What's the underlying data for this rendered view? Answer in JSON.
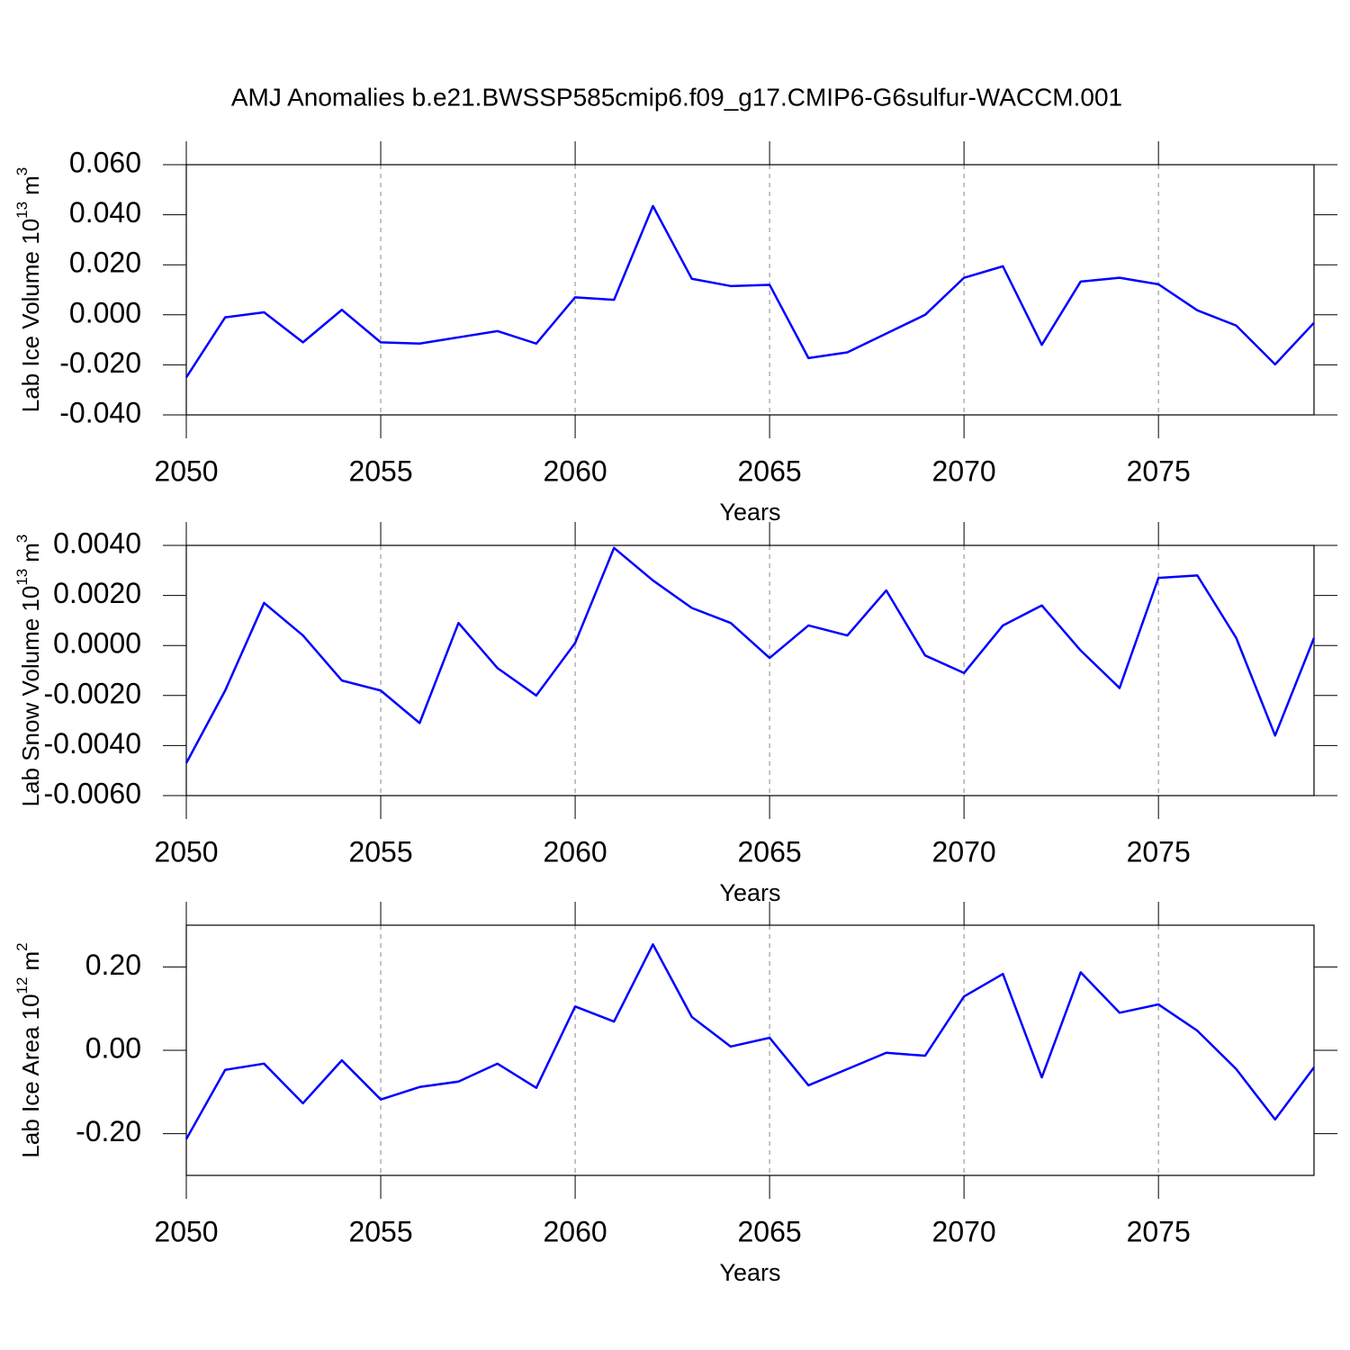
{
  "chart_data": [
    {
      "type": "line",
      "title": "AMJ Anomalies b.e21.BWSSP585cmip6.f09_g17.CMIP6-G6sulfur-WACCM.001",
      "ylabel": {
        "text": "Lab Ice Volume 10",
        "exp": "13",
        "unit": "m",
        "unit_exp": "3"
      },
      "xlabel": "Years",
      "x": [
        2050,
        2051,
        2052,
        2053,
        2054,
        2055,
        2056,
        2057,
        2058,
        2059,
        2060,
        2061,
        2062,
        2063,
        2064,
        2065,
        2066,
        2067,
        2068,
        2069,
        2070,
        2071,
        2072,
        2073,
        2074,
        2075,
        2076,
        2077,
        2078,
        2079
      ],
      "values": [
        -0.025,
        -0.001,
        0.001,
        -0.011,
        0.002,
        -0.011,
        -0.0115,
        -0.009,
        -0.0065,
        -0.0115,
        0.007,
        0.006,
        0.0435,
        0.0144,
        0.0115,
        0.012,
        -0.0173,
        -0.015,
        -0.0075,
        0.0,
        0.0148,
        0.0194,
        -0.012,
        0.0133,
        0.0148,
        0.0122,
        0.0018,
        -0.0043,
        -0.0198,
        -0.0032
      ],
      "color": "#0000ff",
      "xgrid": true,
      "xlim": [
        2050,
        2079
      ],
      "xticks": [
        2050,
        2055,
        2060,
        2065,
        2070,
        2075
      ],
      "ylim": [
        -0.04,
        0.06
      ],
      "yticks": [
        {
          "value": -0.04,
          "label": "-0.040"
        },
        {
          "value": -0.02,
          "label": "-0.020"
        },
        {
          "value": 0,
          "label": "0.000"
        },
        {
          "value": 0.02,
          "label": "0.020"
        },
        {
          "value": 0.04,
          "label": "0.040"
        },
        {
          "value": 0.06,
          "label": "0.060"
        }
      ]
    },
    {
      "type": "line",
      "ylabel": {
        "text": "Lab Snow Volume 10",
        "exp": "13",
        "unit": "m",
        "unit_exp": "3"
      },
      "xlabel": "Years",
      "x": [
        2050,
        2051,
        2052,
        2053,
        2054,
        2055,
        2056,
        2057,
        2058,
        2059,
        2060,
        2061,
        2062,
        2063,
        2064,
        2065,
        2066,
        2067,
        2068,
        2069,
        2070,
        2071,
        2072,
        2073,
        2074,
        2075,
        2076,
        2077,
        2078,
        2079
      ],
      "values": [
        -0.0047,
        -0.0018,
        0.0017,
        0.0004,
        -0.0014,
        -0.0018,
        -0.0031,
        0.0009,
        -0.0009,
        -0.002,
        0.0001,
        0.0039,
        0.0026,
        0.0015,
        0.0009,
        -0.0005,
        0.0008,
        0.0004,
        0.0022,
        -0.0004,
        -0.0011,
        0.0008,
        0.0016,
        -0.0002,
        -0.0017,
        0.0027,
        0.0028,
        0.0003,
        -0.0036,
        0.0003
      ],
      "color": "#0000ff",
      "xgrid": true,
      "xlim": [
        2050,
        2079
      ],
      "xticks": [
        2050,
        2055,
        2060,
        2065,
        2070,
        2075
      ],
      "ylim": [
        -0.006,
        0.004
      ],
      "yticks": [
        {
          "value": -0.006,
          "label": "-0.0060"
        },
        {
          "value": -0.004,
          "label": "-0.0040"
        },
        {
          "value": -0.002,
          "label": "-0.0020"
        },
        {
          "value": 0,
          "label": "0.0000"
        },
        {
          "value": 0.002,
          "label": "0.0020"
        },
        {
          "value": 0.004,
          "label": "0.0040"
        }
      ]
    },
    {
      "type": "line",
      "ylabel": {
        "text": "Lab Ice Area 10",
        "exp": "12",
        "unit": "m",
        "unit_exp": "2"
      },
      "xlabel": "Years",
      "x": [
        2050,
        2051,
        2052,
        2053,
        2054,
        2055,
        2056,
        2057,
        2058,
        2059,
        2060,
        2061,
        2062,
        2063,
        2064,
        2065,
        2066,
        2067,
        2068,
        2069,
        2070,
        2071,
        2072,
        2073,
        2074,
        2075,
        2076,
        2077,
        2078,
        2079
      ],
      "values": [
        -0.213,
        -0.047,
        -0.032,
        -0.127,
        -0.024,
        -0.118,
        -0.088,
        -0.075,
        -0.032,
        -0.09,
        0.105,
        0.069,
        0.254,
        0.08,
        0.009,
        0.03,
        -0.084,
        -0.045,
        -0.006,
        -0.013,
        0.129,
        0.183,
        -0.065,
        0.187,
        0.09,
        0.11,
        0.047,
        -0.045,
        -0.166,
        -0.041
      ],
      "color": "#0000ff",
      "xgrid": true,
      "xlim": [
        2050,
        2079
      ],
      "xticks": [
        2050,
        2055,
        2060,
        2065,
        2070,
        2075
      ],
      "ylim": [
        -0.3,
        0.3
      ],
      "yticks": [
        {
          "value": -0.2,
          "label": "-0.20"
        },
        {
          "value": 0,
          "label": "0.00"
        },
        {
          "value": 0.2,
          "label": "0.20"
        }
      ]
    }
  ]
}
